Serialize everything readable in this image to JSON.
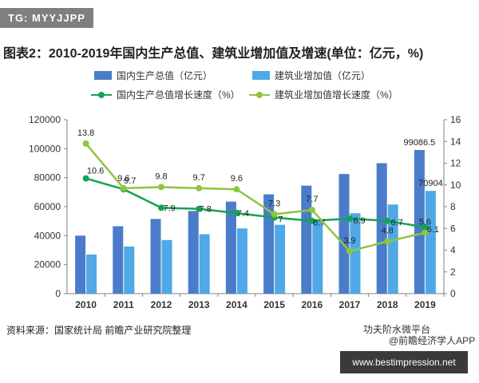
{
  "tag": "TG: MYYJJPP",
  "title": "图表2：2010-2019年国内生产总值、建筑业增加值及增速(单位：亿元，%)",
  "legend": {
    "gdp_bar": "国内生产总值（亿元）",
    "con_bar": "建筑业增加值（亿元）",
    "gdp_line": "国内生产总值增长速度（%）",
    "con_line": "建筑业增加值增长速度（%）"
  },
  "source": "资料来源：国家统计局 前瞻产业研究院整理",
  "watermark": {
    "account": "功夫阶水微平台",
    "app": "@前瞻经济学人APP",
    "url": "www.bestimpression.net"
  },
  "colors": {
    "gdp_bar": "#4a7cc9",
    "con_bar": "#4fa9e6",
    "gdp_line": "#14a353",
    "con_line": "#8dc63f"
  },
  "chart_data": {
    "type": "bar",
    "categories": [
      "2010",
      "2011",
      "2012",
      "2013",
      "2014",
      "2015",
      "2016",
      "2017",
      "2018",
      "2019"
    ],
    "series": [
      {
        "name": "国内生产总值（亿元）",
        "axis": "left",
        "type": "bar",
        "values": [
          40000,
          46500,
          51500,
          57000,
          63500,
          68500,
          74500,
          82500,
          90000,
          99086.5
        ]
      },
      {
        "name": "建筑业增加值（亿元）",
        "axis": "left",
        "type": "bar",
        "values": [
          27000,
          32500,
          37000,
          41000,
          45000,
          47500,
          50000,
          55500,
          61500,
          70904
        ]
      },
      {
        "name": "国内生产总值增长速度（%）",
        "axis": "right",
        "type": "line",
        "values": [
          10.6,
          9.6,
          7.9,
          7.8,
          7.4,
          7,
          6.7,
          6.9,
          6.7,
          6.1
        ]
      },
      {
        "name": "建筑业增加值增长速度（%）",
        "axis": "right",
        "type": "line",
        "values": [
          13.8,
          9.7,
          9.8,
          9.7,
          9.6,
          7.3,
          7.7,
          3.9,
          4.8,
          5.6
        ]
      }
    ],
    "bar_labels": [
      {
        "series": 0,
        "index": 9,
        "text": "99086.5"
      },
      {
        "series": 1,
        "index": 9,
        "text": "70904"
      }
    ],
    "y_left": {
      "min": 0,
      "max": 120000,
      "ticks": [
        "0",
        "20000",
        "40000",
        "60000",
        "80000",
        "100000",
        "120000"
      ]
    },
    "y_right": {
      "min": 0,
      "max": 16,
      "ticks": [
        "0",
        "2",
        "4",
        "6",
        "8",
        "10",
        "12",
        "14",
        "16"
      ]
    },
    "grid": false,
    "legend_position": "top"
  }
}
